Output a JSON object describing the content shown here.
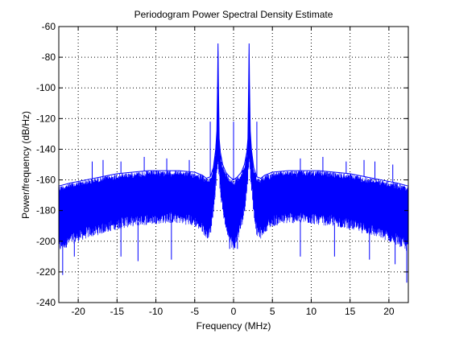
{
  "chart_data": {
    "type": "line",
    "title": "Periodogram Power Spectral Density Estimate",
    "xlabel": "Frequency (MHz)",
    "ylabel": "Power/frequency (dB/Hz)",
    "xlim": [
      -22.5,
      22.5
    ],
    "ylim": [
      -240,
      -60
    ],
    "xticks": [
      -20,
      -15,
      -10,
      -5,
      0,
      5,
      10,
      15,
      20
    ],
    "yticks": [
      -60,
      -80,
      -100,
      -120,
      -140,
      -160,
      -180,
      -200,
      -220,
      -240
    ],
    "grid": true,
    "grid_style": "dotted",
    "line_color": "#0000ff",
    "series": [
      {
        "x": [
          -22.5,
          -21,
          -19,
          -17,
          -15,
          -13,
          -11,
          -9,
          -7,
          -5,
          -4,
          -3.5,
          -3,
          -2.6,
          -2.3,
          -2.15,
          -2.05,
          -2,
          -1.95,
          -1.85,
          -1.7,
          -1.4,
          -1,
          -0.5,
          0,
          0.5,
          1,
          1.4,
          1.7,
          1.85,
          1.95,
          2,
          2.05,
          2.15,
          2.3,
          2.6,
          3,
          3.5,
          4,
          5,
          7,
          9,
          11,
          13,
          15,
          17,
          19,
          21,
          22.5
        ],
        "y": [
          -164,
          -162,
          -160,
          -158,
          -156,
          -155,
          -154,
          -154,
          -154,
          -155,
          -157,
          -159,
          -158,
          -152,
          -140,
          -128,
          -95,
          -71,
          -95,
          -133,
          -142,
          -150,
          -155,
          -158,
          -160,
          -158,
          -155,
          -150,
          -142,
          -133,
          -95,
          -71,
          -95,
          -128,
          -140,
          -152,
          -158,
          -159,
          -157,
          -155,
          -154,
          -154,
          -154,
          -155,
          -156,
          -158,
          -160,
          -162,
          -164
        ],
        "floor_y": [
          -205,
          -200,
          -196,
          -193,
          -190,
          -188,
          -187,
          -186,
          -186,
          -188,
          -192,
          -196,
          -195,
          -180,
          -165,
          -155,
          -150,
          -148,
          -150,
          -158,
          -168,
          -180,
          -190,
          -198,
          -205,
          -198,
          -190,
          -180,
          -168,
          -158,
          -150,
          -148,
          -150,
          -155,
          -165,
          -180,
          -195,
          -196,
          -192,
          -188,
          -186,
          -186,
          -187,
          -188,
          -190,
          -193,
          -196,
          -200,
          -205
        ],
        "spurs": [
          {
            "x": -18.2,
            "y": -148
          },
          {
            "x": -16.8,
            "y": -147
          },
          {
            "x": -14.5,
            "y": -148
          },
          {
            "x": -11.5,
            "y": -145
          },
          {
            "x": -8.6,
            "y": -146
          },
          {
            "x": -5.7,
            "y": -147
          },
          {
            "x": -3.0,
            "y": -122
          },
          {
            "x": 0,
            "y": -122
          },
          {
            "x": 3.0,
            "y": -122
          },
          {
            "x": 8.6,
            "y": -146
          },
          {
            "x": 11.5,
            "y": -145
          },
          {
            "x": 14.5,
            "y": -148
          },
          {
            "x": 16.8,
            "y": -147
          },
          {
            "x": 18.2,
            "y": -148
          },
          {
            "x": 20.5,
            "y": -150
          }
        ],
        "dips": [
          {
            "x": -22.0,
            "y": -222
          },
          {
            "x": -20.5,
            "y": -210
          },
          {
            "x": -14.5,
            "y": -210
          },
          {
            "x": -12.3,
            "y": -213
          },
          {
            "x": -8.0,
            "y": -212
          },
          {
            "x": -0.5,
            "y": -205
          },
          {
            "x": 0.5,
            "y": -205
          },
          {
            "x": 8.6,
            "y": -210
          },
          {
            "x": 13.0,
            "y": -210
          },
          {
            "x": 17.5,
            "y": -212
          },
          {
            "x": 20.8,
            "y": -215
          },
          {
            "x": 22.3,
            "y": -227
          }
        ]
      }
    ]
  }
}
